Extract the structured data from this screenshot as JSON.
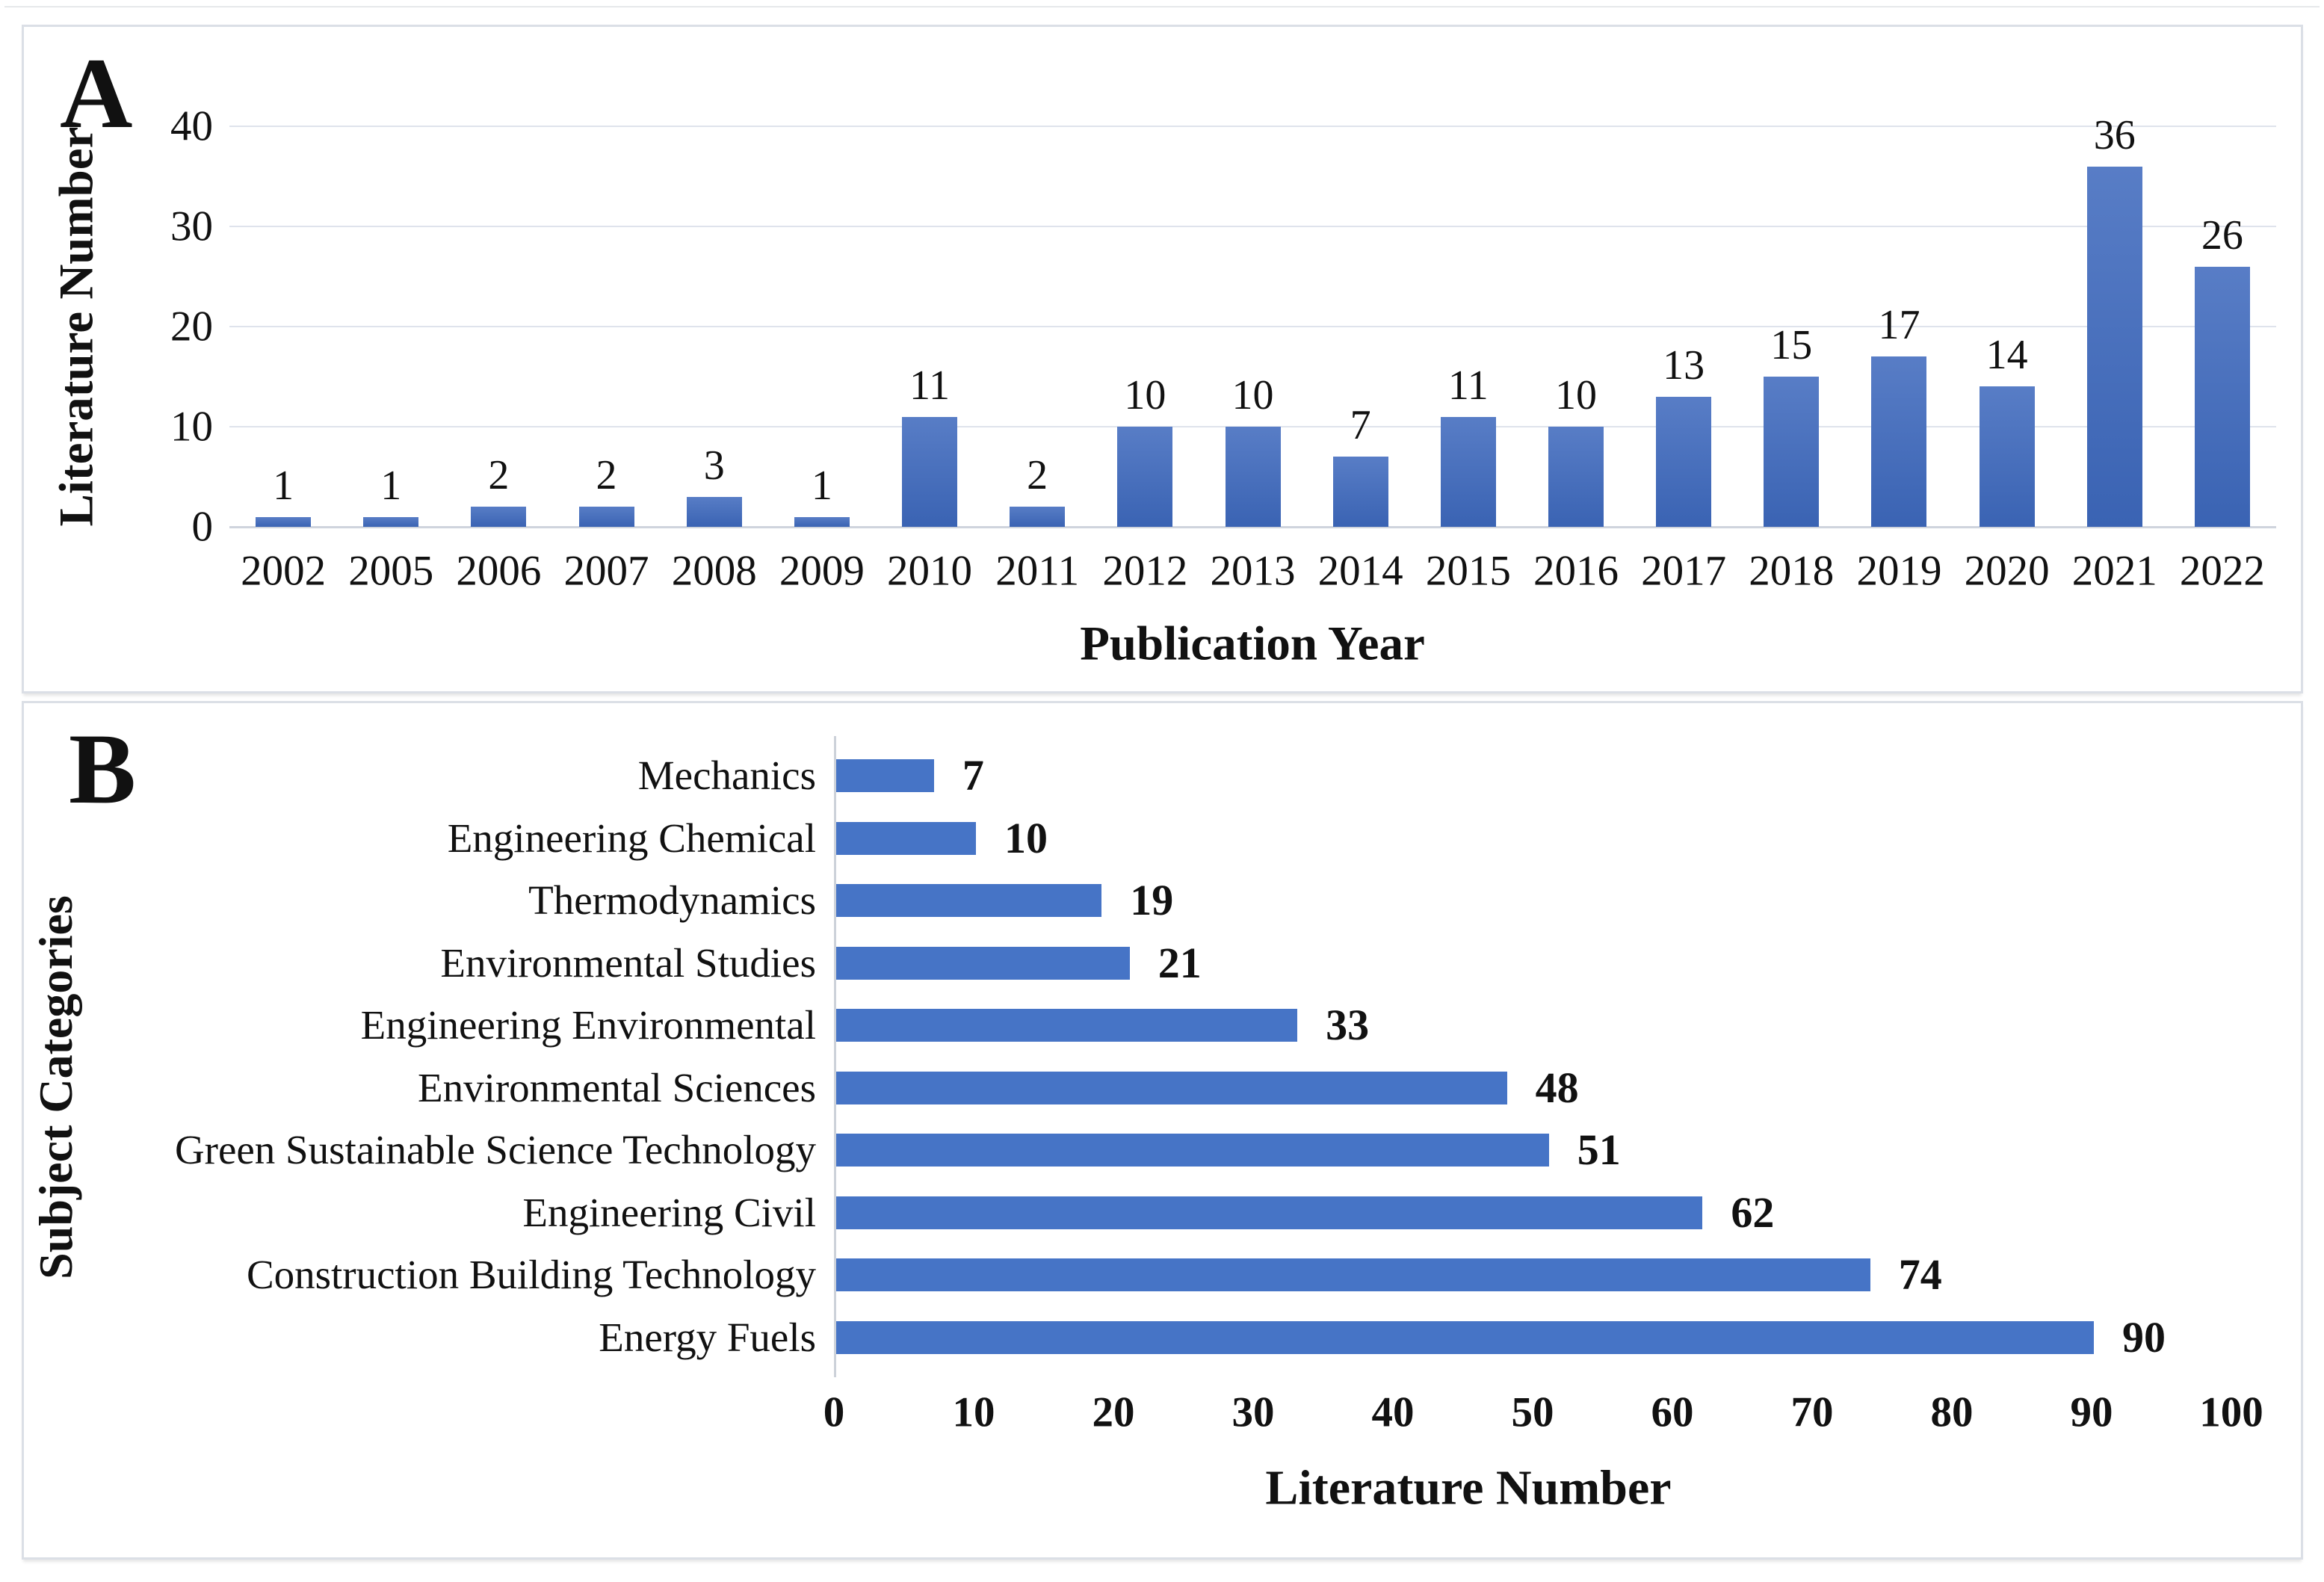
{
  "figure": {
    "background": "#ffffff",
    "panel_count": 2
  },
  "colors": {
    "bar_gradient_top": "#587dc6",
    "bar_gradient_bottom": "#3a63b3",
    "bar_flat": "#4674c6",
    "gridline": "#dfe3ec",
    "axis_line": "#ccd1d9",
    "panel_border": "#dbdfe6",
    "text": "#111111"
  },
  "chart_data": [
    {
      "id": "A",
      "type": "bar",
      "orientation": "vertical",
      "title": "",
      "xlabel": "Publication Year",
      "ylabel": "Literature Number",
      "categories": [
        "2002",
        "2005",
        "2006",
        "2007",
        "2008",
        "2009",
        "2010",
        "2011",
        "2012",
        "2013",
        "2014",
        "2015",
        "2016",
        "2017",
        "2018",
        "2019",
        "2020",
        "2021",
        "2022"
      ],
      "values": [
        1,
        1,
        2,
        2,
        3,
        1,
        11,
        2,
        10,
        10,
        7,
        11,
        10,
        13,
        15,
        17,
        14,
        36,
        26
      ],
      "ylim": [
        0,
        40
      ],
      "yticks": [
        0,
        10,
        20,
        30,
        40
      ],
      "grid": true,
      "data_labels": true,
      "legend": "none"
    },
    {
      "id": "B",
      "type": "bar",
      "orientation": "horizontal",
      "title": "",
      "xlabel": "Literature Number",
      "ylabel": "Subject Categories",
      "categories": [
        "Mechanics",
        "Engineering Chemical",
        "Thermodynamics",
        "Environmental Studies",
        "Engineering Environmental",
        "Environmental Sciences",
        "Green Sustainable Science Technology",
        "Engineering Civil",
        "Construction Building Technology",
        "Energy Fuels"
      ],
      "values": [
        7,
        10,
        19,
        21,
        33,
        48,
        51,
        62,
        74,
        90
      ],
      "xlim": [
        0,
        100
      ],
      "xticks": [
        0,
        10,
        20,
        30,
        40,
        50,
        60,
        70,
        80,
        90,
        100
      ],
      "grid": false,
      "data_labels": true,
      "legend": "none"
    }
  ]
}
